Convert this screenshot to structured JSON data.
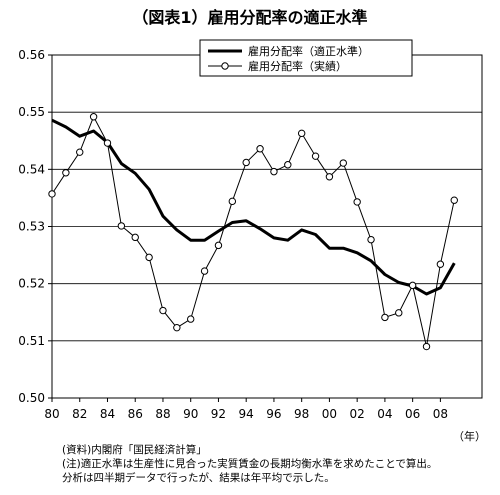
{
  "title": "（図表1）雇用分配率の適正水準",
  "chart_data": {
    "type": "line",
    "x": [
      1980,
      1981,
      1982,
      1983,
      1984,
      1985,
      1986,
      1987,
      1988,
      1989,
      1990,
      1991,
      1992,
      1993,
      1994,
      1995,
      1996,
      1997,
      1998,
      1999,
      2000,
      2001,
      2002,
      2003,
      2004,
      2005,
      2006,
      2007,
      2008,
      2009
    ],
    "x_tick_labels": [
      "80",
      "82",
      "84",
      "86",
      "88",
      "90",
      "92",
      "94",
      "96",
      "98",
      "00",
      "02",
      "04",
      "06",
      "08"
    ],
    "x_unit": "（年）",
    "ylim": [
      0.5,
      0.56
    ],
    "y_tick_labels": [
      "0.50",
      "0.51",
      "0.52",
      "0.53",
      "0.54",
      "0.55",
      "0.56"
    ],
    "grid": "horizontal",
    "legend_position": "top-right",
    "series": [
      {
        "name": "雇用分配率（適正水準）",
        "style": "thick-line",
        "values": [
          0.5486,
          0.5474,
          0.5458,
          0.5467,
          0.5447,
          0.541,
          0.5393,
          0.5365,
          0.5318,
          0.5294,
          0.5276,
          0.5276,
          0.5292,
          0.5307,
          0.531,
          0.5296,
          0.528,
          0.5276,
          0.5294,
          0.5286,
          0.5262,
          0.5262,
          0.5254,
          0.524,
          0.5216,
          0.5202,
          0.5196,
          0.5182,
          0.5193,
          0.5236
        ]
      },
      {
        "name": "雇用分配率（実績）",
        "style": "thin-line-circle-markers",
        "values": [
          0.5357,
          0.5394,
          0.543,
          0.5492,
          0.5446,
          0.5301,
          0.5281,
          0.5246,
          0.5153,
          0.5123,
          0.5138,
          0.5222,
          0.5267,
          0.5344,
          0.5412,
          0.5436,
          0.5396,
          0.5408,
          0.5463,
          0.5423,
          0.5387,
          0.5411,
          0.5343,
          0.5277,
          0.5141,
          0.5149,
          0.5197,
          0.509,
          0.5234,
          0.5346
        ]
      }
    ]
  },
  "notes": [
    "(資料)内閣府「国民経済計算」",
    "(注)適正水準は生産性に見合った実質賃金の長期均衡水準を求めたことで算出。",
    "分析は四半期データで行ったが、結果は年平均で示した。"
  ],
  "colors": {
    "line": "#000000",
    "grid": "#000000",
    "background": "#ffffff"
  }
}
